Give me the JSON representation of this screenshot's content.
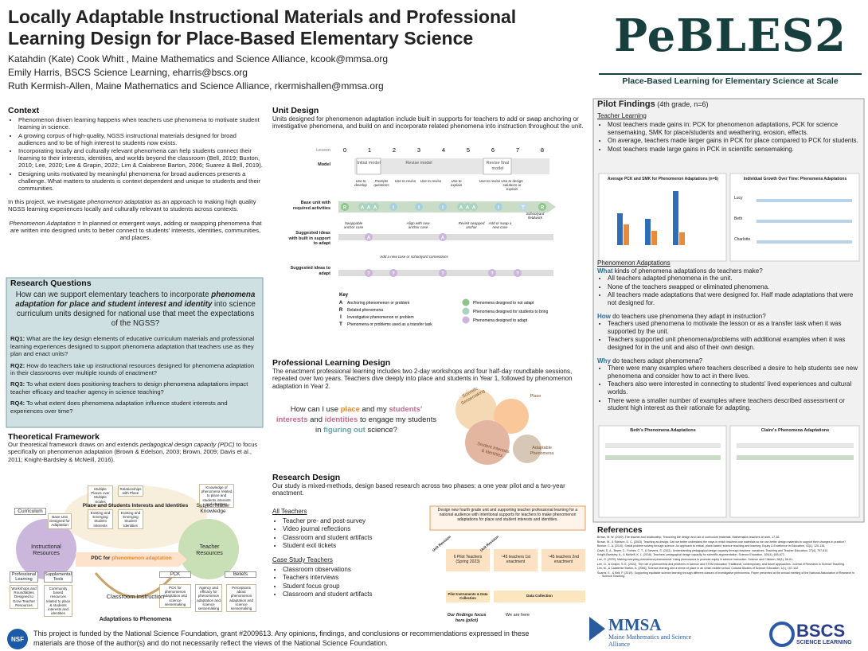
{
  "header": {
    "title": "Locally Adaptable Instructional Materials and Professional Learning Design for Place-Based Elementary Science",
    "authors": [
      "Katahdin (Kate) Cook Whitt , Maine Mathematics and Science Alliance, kcook@mmsa.org",
      "Emily Harris, BSCS Science Learning, eharris@bscs.org",
      "Ruth Kermish-Allen, Maine Mathematics and Science Alliance, rkermishallen@mmsa.org"
    ],
    "logo": "PeBLES2",
    "tagline": "Place-Based Learning for Elementary Science at Scale"
  },
  "context": {
    "heading": "Context",
    "bullets": [
      "Phenomenon driven learning happens when teachers use phenomena to motivate student learning in science.",
      "A growing corpus of high-quality, NGSS instructional materials designed for broad audiences and to be of high interest to students now exists.",
      "Incorporating locally and culturally relevant phenomena can help students connect their learning to their interests, identities, and worlds beyond the classroom (Bell, 2019; Buxton, 2010; Lee, 2020; Lee & Grapin, 2022; Lim & Calabrese Barton, 2006; Suarez & Bell, 2019).",
      "Designing units motivated by meaningful phenomena for broad audiences presents a challenge. What matters to students is context dependent and unique to students and their communities."
    ],
    "paragraph": [
      "In this project, we investigate ",
      "phenomenon adaptation",
      " as an approach to making high quality NGSS learning experiences locally and culturally relevant to students across contexts."
    ],
    "definition": [
      "Phenomenon Adaptation",
      " = In planned or emergent ways, adding or swapping phenomena that are written into designed units to better connect to students' interests, identities, communities, and places."
    ]
  },
  "research_questions": {
    "heading": "Research Questions",
    "intro": [
      "How can we support elementary teachers to incorporate ",
      "phenomena adaptation for place and student interest and identity",
      " into science curriculum units designed for national use that meet the expectations of the NGSS?"
    ],
    "items": [
      {
        "label": "RQ1:",
        "text": " What are the key design elements of educative curriculum materials and professional learning experiences designed to support phenomena adaptation that teachers use as they plan and enact units?"
      },
      {
        "label": "RQ2:",
        "text": " How do teachers take up instructional resources designed for phenomena adaptation in their classrooms over multiple rounds of enactment?"
      },
      {
        "label": "RQ3:",
        "text": " To what extent does positioning teachers to design phenomena adaptations impact teacher efficacy and teacher agency in science teaching?"
      },
      {
        "label": "RQ4:",
        "text": " To what extent does phenomena adaptation influence student interests and experiences over time?"
      }
    ]
  },
  "framework": {
    "heading": "Theoretical Framework",
    "text": [
      "Our theoretical framework draws on and extends ",
      "pedagogical design capacity (PDC)",
      " to focus specifically on phenomenon adaptation (Brown & Edelson, 2003; Brown, 2009; Davis et al., 2011; Knight-Bardsley & McNeill, 2016)."
    ],
    "diagram": {
      "place": "Place and Students Interests and Identities",
      "place_boxes": [
        "Multiple Places over Multiple Scales",
        "Relationships with Place",
        "Existing and Emerging Student Interests",
        "Existing and Emerging Student Identities"
      ],
      "knowledge_box": "Knowledge of phenomena related to place and students interests and identities",
      "subject": "Subject Matter Knowledge",
      "curriculum": "Curriculum",
      "base_unit": "Base Unit Designed for Adaptation",
      "instructional": "Instructional Resources",
      "professional": "Professional Learning",
      "supplemental": "Supplemental Tools",
      "workshops": "Workshops and Roundtables Designed to Grow Teacher Resources",
      "community": "Community based resources related to place & students interests and identities",
      "pdc": [
        "PDC for ",
        "phenomenon adaptation"
      ],
      "teacher": "Teacher Resources",
      "pck": "PCK",
      "beliefs": "Beliefs",
      "pck_box": "PCK for phenomenon adaptation and science sensemaking",
      "agency_box": "Agency and efficacy for phenomenon adaptation and science sensemaking",
      "perceptions_box": "Perceptions about phenomenon adaptation and science sensemaking",
      "classroom": "Classroom Instruction",
      "adaptations": "Adaptations to Phenomena"
    }
  },
  "unit_design": {
    "heading": "Unit Design",
    "text": "Units designed for phenomenon adaptation include built in supports for teachers to add or swap anchoring or investigative  phenomena, and build on and incorporate related phenomena into instruction throughout the unit.",
    "lesson_label": "Lesson",
    "lessons": [
      "0",
      "1",
      "2",
      "3",
      "4",
      "5",
      "6",
      "7",
      "8"
    ],
    "rows": [
      "Model",
      "Base unit with required activities",
      "Suggested ideas with built in support to adapt",
      "Suggested ideas to adapt"
    ],
    "models": [
      "Initial model",
      "Revise model",
      "Revise final model"
    ],
    "uses": [
      "Use to develop",
      "Prompts questions",
      "Use to revise",
      "Use to revise",
      "Use to explain",
      "Use to revise",
      "Use to design solutions or explain"
    ],
    "base_letters": [
      "R",
      "A",
      "A",
      "A",
      "I",
      "I",
      "I",
      "A",
      "A",
      "A",
      "I",
      "T",
      "R"
    ],
    "notes": [
      "Swappable anchor case",
      "Align with new anchor case",
      "Revisit swapped anchor",
      "Add or swap a new case",
      "Schoolyard fieldwork",
      "Add a new case or schoolyard connections"
    ],
    "support_letters": [
      "A",
      "A"
    ],
    "question_mark": "?",
    "key": {
      "heading": "Key",
      "letters": [
        {
          "letter": "A",
          "text": "Anchoring phenomenon or problem"
        },
        {
          "letter": "R",
          "text": "Related phenomena"
        },
        {
          "letter": "I",
          "text": "Investigative phenomenon or problem"
        },
        {
          "letter": "T",
          "text": "Phenomena or problems used as a transfer task"
        }
      ],
      "circles": [
        "Phenomena designed to not adapt",
        "Phenomena designed for students to bring",
        "Phenomena designed to adapt"
      ]
    }
  },
  "professional_learning": {
    "heading": "Professional Learning Design",
    "text": "The enactment professional learning includes two 2-day workshops and four half-day roundtable sessions, repeated over two years. Teachers dive deeply into place and students in Year 1, followed by phenomenon adaptation in Year 2.",
    "question": [
      "How can I use ",
      "place",
      " and my ",
      "students' interests",
      " and ",
      "identities",
      " to engage my students in ",
      "figuring out",
      " science?"
    ],
    "venn": [
      "Scientific Sensemaking",
      "Place",
      "Student Interests & Identities",
      "Adaptable Phenomena"
    ]
  },
  "research_design": {
    "heading": "Research Design",
    "text": "Our study is mixed-methods, design based research across two phases: a one year pilot and a two-year enactment.",
    "all_heading": "All Teachers",
    "all": [
      "Teacher pre- and post-survey",
      "Video journal reflections",
      "Classroom and student artifacts",
      "Student exit tickets"
    ],
    "case_heading": "Case Study Teachers",
    "case": [
      "Classroom observations",
      "Teachers interviews",
      "Student focus group",
      "Classroom and student artifacts"
    ],
    "banner": "Design new fourth grade unit and supporting teacher professional learning for a national audience with intentional supports for teachers to make phenomenon adaptations for place and student interests and identities.",
    "revision": "Unit Revision",
    "phases": [
      "6 Pilot Teachers (Spring 2023)",
      "~45 teachers 1st enactment",
      "~45 teachers 2nd enactment"
    ],
    "pilot_data": "Pilot Instruments & Data Collection",
    "data": "Data Collection",
    "focus": "Our findings focus here (pilot)",
    "here": "We are here"
  },
  "pilot": {
    "heading": "Pilot Findings",
    "subtitle": " (4th grade, n=6)",
    "teacher_learning": "Teacher Learning",
    "learning_bullets": [
      "Most teachers made gains in: PCK for phenomenon adaptations, PCK for science sensemaking, SMK for place/students and weathering, erosion, effects.",
      "On average, teachers made larger gains in PCK for place compared to PCK for students.",
      "Most teachers made large gains in PCK in scientific sensemaking."
    ],
    "chart1_title": "Average PCK and SMK for Phenomenon Adaptations (n=6)",
    "chart2_title": "Individual Growth Over Time: Phenomena Adaptations",
    "teachers": [
      "Lucy",
      "Beth",
      "Charlotte"
    ],
    "adaptations_heading": "Phenomenon Adaptations",
    "questions": [
      {
        "word": "What",
        "rest": " kinds of phenomena adaptations do teachers make?",
        "bullets": [
          "All teachers adapted phenomena in the unit.",
          "None of the teachers swapped or eliminated phenomena.",
          "All teachers made adaptations that were designed for. Half made adaptations that were not designed for."
        ]
      },
      {
        "word": "How",
        "rest": " do teachers use phenomena they adapt in instruction?",
        "bullets": [
          "Teachers used phenomena to motivate the lesson or as a transfer task when it was supported by the unit.",
          "Teachers supported unit phenomena/problems with additional examples when it was designed for in the unit and also of their own design."
        ]
      },
      {
        "word": "Why",
        "rest": " do teachers adapt phenomena?",
        "bullets": [
          "There were many examples where teachers described a desire to help students see new phenomena and consider how to act in there lives.",
          "Teachers also were interested in connecting to students' lived experiences and cultural worlds.",
          "There were a smaller number of examples where teachers described assessment or student high interest as their rationale for adapting."
        ]
      }
    ],
    "beth_title": "Beth's Phenomena Adaptations",
    "claire_title": "Claire's Phenomena Adaptations"
  },
  "references": {
    "heading": "References",
    "items": [
      "Brown, M. W. (2009). The teacher-tool relationship: Theorizing the design and use of curriculum materials. Mathematics teachers at work, 17-36.",
      "Brown, M., & Edelson, D. C. (2003). Teaching as design: Can we better understand the ways in which teachers use materials so we can better design materials to support their changes in practice?",
      "Buxton, C. A. (2010). Social problem solving through science: An approach to critical, place-based, science teaching and learning. Equity & Excellence in Education, 43(1), 120-135.",
      "Davis, E. A., Beyer, C., Forbes, C. T., & Stevens, S. (2011). Understanding pedagogical design capacity through teachers' narratives. Teaching and Teacher Education, 27(4), 797-810.",
      "Knight-Bardsley, A., & McNeill, K. L. (2016). Teachers' pedagogical design capacity for scientific argumentation. Science Education, 100(4), 645-672.",
      "Lee, O. (2020). Making everyday phenomena phenomenal: Using phenomena to promote equity in science instruction. Science and Children, 58(1), 56-61.",
      "Lee, O., & Grapin, S. E. (2022). The role of phenomena and problems in science and STEM education: Traditional, contemporary, and future approaches. Journal of Research in Science Teaching.",
      "Lim, M., & Calabrese Barton, A. (2006). Science learning and a sense of place in an urban middle school. Cultural Studies of Science Education, 1(1), 107-142.",
      "Suarez, E., & Bell, P. (2019). Supporting equitable science learning through different classes of investigative phenomena. Paper presented at the annual meeting of the National Association of Research in Science Teaching."
    ]
  },
  "footer": {
    "nsf": "NSF",
    "funding": "This project is funded by the National Science Foundation, grant #2009613. Any opinions, findings, and conclusions or recommendations expressed in these materials are those of the author(s) and do not necessarily reflect the views of the National Science Foundation.",
    "mmsa": "MMSA",
    "mmsa_name": "Maine Mathematics and Science Alliance",
    "bscs": "BSCS",
    "bscs_sub": "SCIENCE LEARNING"
  }
}
